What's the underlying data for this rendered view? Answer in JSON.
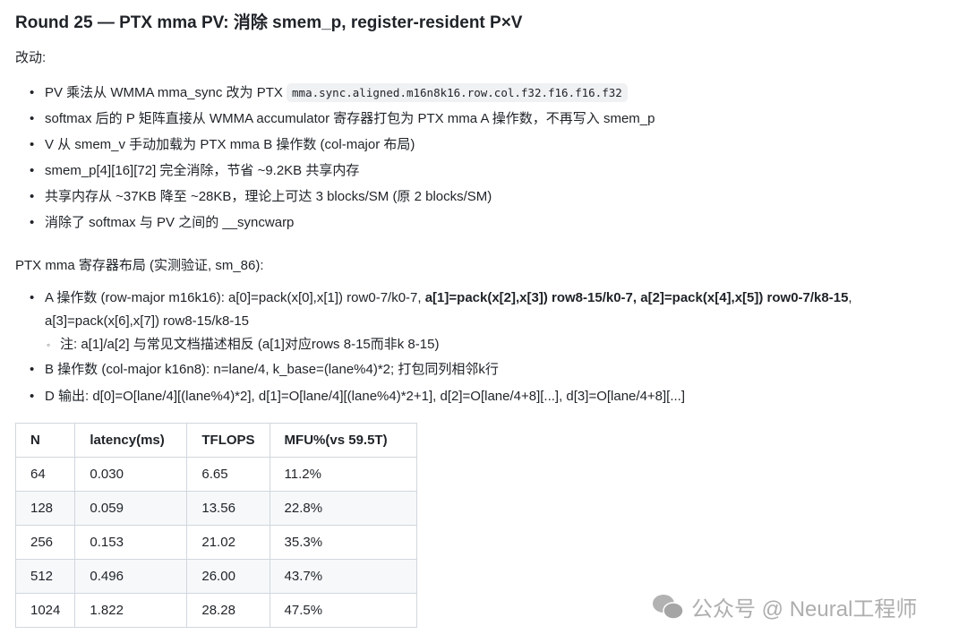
{
  "title": "Round 25 — PTX mma PV: 消除 smem_p, register-resident P×V",
  "changes_label": "改动:",
  "changes": {
    "c0_text": "PV 乘法从 WMMA mma_sync 改为 PTX ",
    "c0_code": "mma.sync.aligned.m16n8k16.row.col.f32.f16.f16.f32",
    "c1": "softmax 后的 P 矩阵直接从 WMMA accumulator 寄存器打包为 PTX mma A 操作数，不再写入 smem_p",
    "c2": "V 从 smem_v 手动加载为 PTX mma B 操作数 (col-major 布局)",
    "c3": "smem_p[4][16][72] 完全消除，节省 ~9.2KB 共享内存",
    "c4": "共享内存从 ~37KB 降至 ~28KB，理论上可达 3 blocks/SM (原 2 blocks/SM)",
    "c5": "消除了 softmax 与 PV 之间的 __syncwarp"
  },
  "layout_label": "PTX mma 寄存器布局 (实测验证, sm_86):",
  "layout": {
    "a_pre": "A 操作数 (row-major m16k16): a[0]=pack(x[0],x[1]) row0-7/k0-7, ",
    "a_bold": "a[1]=pack(x[2],x[3]) row8-15/k0-7, a[2]=pack(x[4],x[5]) row0-7/k8-15",
    "a_post": ", a[3]=pack(x[6],x[7]) row8-15/k8-15",
    "a_note": "注: a[1]/a[2] 与常见文档描述相反 (a[1]对应rows 8-15而非k 8-15)",
    "b": "B 操作数 (col-major k16n8): n=lane/4, k_base=(lane%4)*2; 打包同列相邻k行",
    "d": "D 输出: d[0]=O[lane/4][(lane%4)*2], d[1]=O[lane/4][(lane%4)*2+1], d[2]=O[lane/4+8][...], d[3]=O[lane/4+8][...]"
  },
  "table": {
    "headers": [
      "N",
      "latency(ms)",
      "TFLOPS",
      "MFU%(vs 59.5T)"
    ],
    "rows": [
      [
        "64",
        "0.030",
        "6.65",
        "11.2%"
      ],
      [
        "128",
        "0.059",
        "13.56",
        "22.8%"
      ],
      [
        "256",
        "0.153",
        "21.02",
        "35.3%"
      ],
      [
        "512",
        "0.496",
        "26.00",
        "43.7%"
      ],
      [
        "1024",
        "1.822",
        "28.28",
        "47.5%"
      ]
    ]
  },
  "watermark": "公众号 @ Neural工程师"
}
